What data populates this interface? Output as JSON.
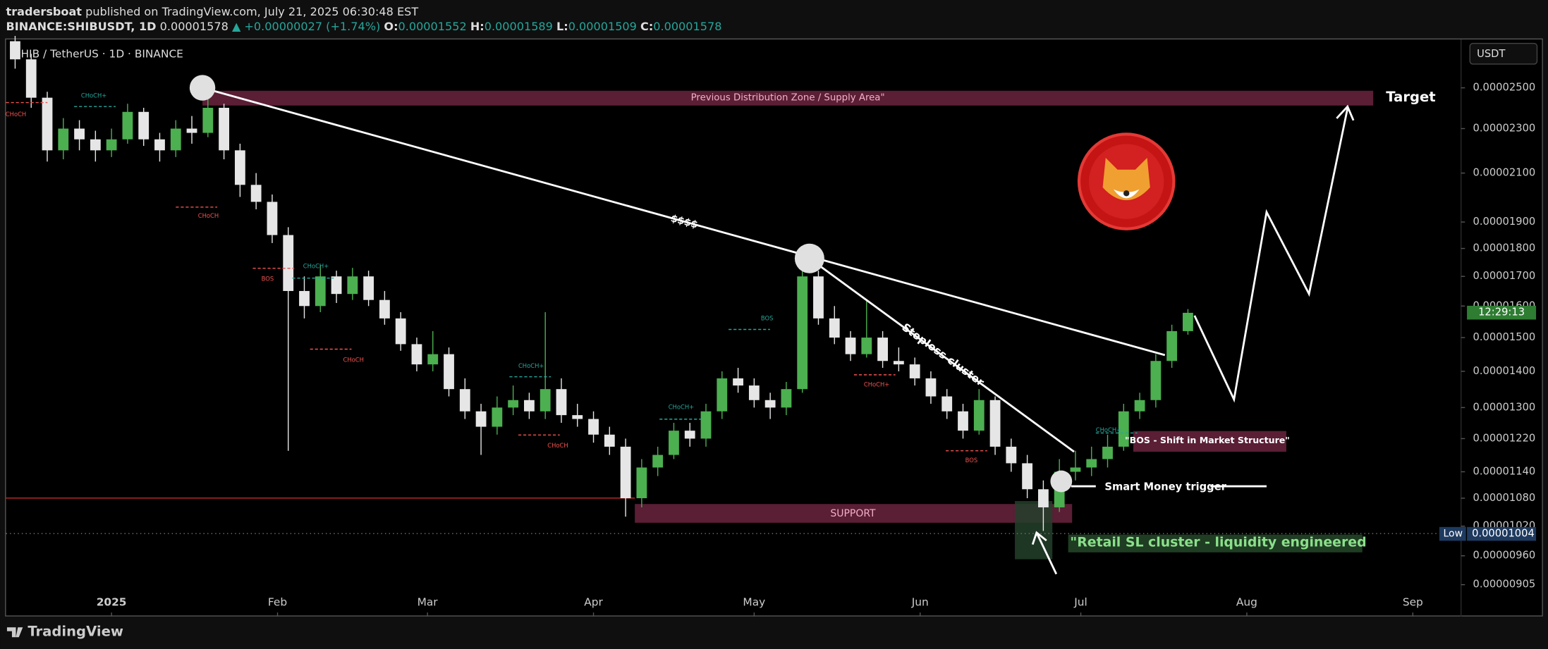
{
  "header": {
    "author": "tradersboat",
    "published": "published on TradingView.com, July 21, 2025 06:30:48 EST",
    "symbol": "BINANCE:SHIBUSDT, 1D",
    "price": "0.00001578",
    "change": "▲ +0.00000027 (+1.74%)",
    "ohlc": [
      {
        "key": "O:",
        "value": "0.00001552"
      },
      {
        "key": "H:",
        "value": "0.00001589"
      },
      {
        "key": "L:",
        "value": "0.00001509"
      },
      {
        "key": "C:",
        "value": "0.00001578"
      }
    ]
  },
  "currency_button": "USDT",
  "footer": "TradingView",
  "chart_data": {
    "type": "candlestick",
    "title": "SHIB / TetherUS · 1D · BINANCE",
    "up_color": "#4caf50",
    "down_color": "#e6e6e6",
    "log_scale": true,
    "grid": false,
    "x": [
      -18,
      -15,
      -12,
      -9,
      -6,
      -3,
      0,
      3,
      6,
      9,
      12,
      15,
      18,
      21,
      24,
      27,
      30,
      33,
      36,
      39,
      42,
      45,
      48,
      51,
      54,
      57,
      60,
      63,
      66,
      69,
      72,
      75,
      78,
      81,
      84,
      87,
      90,
      93,
      96,
      99,
      102,
      105,
      108,
      111,
      114,
      117,
      120,
      123,
      126,
      129,
      132,
      135,
      138,
      141,
      144,
      147,
      150,
      153,
      156,
      159,
      162,
      165,
      168,
      171,
      174,
      177,
      180,
      183,
      186,
      189,
      192,
      195,
      198,
      201
    ],
    "open": [
      2.75e-05,
      2.65e-05,
      2.45e-05,
      2.2e-05,
      2.3e-05,
      2.25e-05,
      2.2e-05,
      2.25e-05,
      2.38e-05,
      2.25e-05,
      2.2e-05,
      2.3e-05,
      2.28e-05,
      2.4e-05,
      2.2e-05,
      2.05e-05,
      1.98e-05,
      1.85e-05,
      1.65e-05,
      1.6e-05,
      1.7e-05,
      1.64e-05,
      1.7e-05,
      1.62e-05,
      1.56e-05,
      1.48e-05,
      1.42e-05,
      1.45e-05,
      1.35e-05,
      1.29e-05,
      1.25e-05,
      1.3e-05,
      1.32e-05,
      1.29e-05,
      1.35e-05,
      1.28e-05,
      1.27e-05,
      1.23e-05,
      1.2e-05,
      1.08e-05,
      1.15e-05,
      1.18e-05,
      1.24e-05,
      1.22e-05,
      1.29e-05,
      1.38e-05,
      1.36e-05,
      1.32e-05,
      1.3e-05,
      1.35e-05,
      1.7e-05,
      1.56e-05,
      1.5e-05,
      1.45e-05,
      1.5e-05,
      1.43e-05,
      1.42e-05,
      1.38e-05,
      1.33e-05,
      1.29e-05,
      1.24e-05,
      1.32e-05,
      1.2e-05,
      1.16e-05,
      1.1e-05,
      1.06e-05,
      1.14e-05,
      1.15e-05,
      1.17e-05,
      1.2e-05,
      1.29e-05,
      1.32e-05,
      1.43e-05,
      1.52e-05
    ],
    "high": [
      2.78e-05,
      2.68e-05,
      2.48e-05,
      2.35e-05,
      2.34e-05,
      2.29e-05,
      2.3e-05,
      2.42e-05,
      2.4e-05,
      2.28e-05,
      2.34e-05,
      2.36e-05,
      2.5e-05,
      2.42e-05,
      2.23e-05,
      2.1e-05,
      2.01e-05,
      1.88e-05,
      1.7e-05,
      1.74e-05,
      1.72e-05,
      1.73e-05,
      1.72e-05,
      1.65e-05,
      1.58e-05,
      1.5e-05,
      1.52e-05,
      1.47e-05,
      1.38e-05,
      1.31e-05,
      1.33e-05,
      1.36e-05,
      1.34e-05,
      1.58e-05,
      1.38e-05,
      1.31e-05,
      1.29e-05,
      1.25e-05,
      1.22e-05,
      1.17e-05,
      1.2e-05,
      1.26e-05,
      1.26e-05,
      1.31e-05,
      1.4e-05,
      1.41e-05,
      1.38e-05,
      1.34e-05,
      1.37e-05,
      1.76e-05,
      1.72e-05,
      1.6e-05,
      1.52e-05,
      1.62e-05,
      1.52e-05,
      1.47e-05,
      1.44e-05,
      1.4e-05,
      1.35e-05,
      1.31e-05,
      1.35e-05,
      1.33e-05,
      1.22e-05,
      1.18e-05,
      1.12e-05,
      1.17e-05,
      1.19e-05,
      1.2e-05,
      1.23e-05,
      1.31e-05,
      1.34e-05,
      1.45e-05,
      1.54e-05,
      1.59e-05
    ],
    "low": [
      2.6e-05,
      2.4e-05,
      2.15e-05,
      2.16e-05,
      2.2e-05,
      2.15e-05,
      2.17e-05,
      2.23e-05,
      2.22e-05,
      2.15e-05,
      2.17e-05,
      2.23e-05,
      2.26e-05,
      2.16e-05,
      2e-05,
      1.95e-05,
      1.82e-05,
      1.19e-05,
      1.56e-05,
      1.58e-05,
      1.61e-05,
      1.62e-05,
      1.6e-05,
      1.54e-05,
      1.46e-05,
      1.4e-05,
      1.4e-05,
      1.33e-05,
      1.27e-05,
      1.18e-05,
      1.23e-05,
      1.28e-05,
      1.27e-05,
      1.27e-05,
      1.26e-05,
      1.25e-05,
      1.21e-05,
      1.18e-05,
      1.04e-05,
      1.06e-05,
      1.13e-05,
      1.17e-05,
      1.2e-05,
      1.2e-05,
      1.27e-05,
      1.34e-05,
      1.3e-05,
      1.27e-05,
      1.28e-05,
      1.34e-05,
      1.54e-05,
      1.48e-05,
      1.43e-05,
      1.44e-05,
      1.41e-05,
      1.4e-05,
      1.36e-05,
      1.31e-05,
      1.27e-05,
      1.22e-05,
      1.23e-05,
      1.18e-05,
      1.14e-05,
      1.08e-05,
      1.01e-05,
      1.05e-05,
      1.12e-05,
      1.13e-05,
      1.15e-05,
      1.19e-05,
      1.27e-05,
      1.3e-05,
      1.41e-05,
      1.509e-05
    ],
    "close": [
      2.65e-05,
      2.45e-05,
      2.2e-05,
      2.3e-05,
      2.25e-05,
      2.2e-05,
      2.25e-05,
      2.38e-05,
      2.25e-05,
      2.2e-05,
      2.3e-05,
      2.28e-05,
      2.4e-05,
      2.2e-05,
      2.05e-05,
      1.98e-05,
      1.85e-05,
      1.65e-05,
      1.6e-05,
      1.7e-05,
      1.64e-05,
      1.7e-05,
      1.62e-05,
      1.56e-05,
      1.48e-05,
      1.42e-05,
      1.45e-05,
      1.35e-05,
      1.29e-05,
      1.25e-05,
      1.3e-05,
      1.32e-05,
      1.29e-05,
      1.35e-05,
      1.28e-05,
      1.27e-05,
      1.23e-05,
      1.2e-05,
      1.08e-05,
      1.15e-05,
      1.18e-05,
      1.24e-05,
      1.22e-05,
      1.29e-05,
      1.38e-05,
      1.36e-05,
      1.32e-05,
      1.3e-05,
      1.35e-05,
      1.7e-05,
      1.56e-05,
      1.5e-05,
      1.45e-05,
      1.5e-05,
      1.43e-05,
      1.42e-05,
      1.38e-05,
      1.33e-05,
      1.29e-05,
      1.24e-05,
      1.32e-05,
      1.2e-05,
      1.16e-05,
      1.1e-05,
      1.06e-05,
      1.14e-05,
      1.15e-05,
      1.17e-05,
      1.2e-05,
      1.29e-05,
      1.32e-05,
      1.43e-05,
      1.52e-05,
      1.578e-05
    ],
    "xlim": [
      -19.7,
      252
    ],
    "xticks": [
      {
        "value": 0,
        "label": "2025"
      },
      {
        "value": 31,
        "label": "Feb"
      },
      {
        "value": 59,
        "label": "Mar"
      },
      {
        "value": 90,
        "label": "Apr"
      },
      {
        "value": 120,
        "label": "May"
      },
      {
        "value": 151,
        "label": "Jun"
      },
      {
        "value": 181,
        "label": "Jul"
      },
      {
        "value": 212,
        "label": "Aug"
      },
      {
        "value": 243,
        "label": "Sep"
      }
    ],
    "ylim": [
      8.48e-06,
      2.76e-05
    ],
    "yticks": [
      {
        "value": 2.5e-05,
        "label": "0.00002500"
      },
      {
        "value": 2.3e-05,
        "label": "0.00002300"
      },
      {
        "value": 2.1e-05,
        "label": "0.00002100"
      },
      {
        "value": 1.9e-05,
        "label": "0.00001900"
      },
      {
        "value": 1.8e-05,
        "label": "0.00001800"
      },
      {
        "value": 1.7e-05,
        "label": "0.00001700"
      },
      {
        "value": 1.6e-05,
        "label": "0.00001600"
      },
      {
        "value": 1.5e-05,
        "label": "0.00001500"
      },
      {
        "value": 1.4e-05,
        "label": "0.00001400"
      },
      {
        "value": 1.3e-05,
        "label": "0.00001300"
      },
      {
        "value": 1.22e-05,
        "label": "0.00001220"
      },
      {
        "value": 1.14e-05,
        "label": "0.00001140"
      },
      {
        "value": 1.08e-05,
        "label": "0.00001080"
      },
      {
        "value": 1.02e-05,
        "label": "0.00001020"
      },
      {
        "value": 9.6e-06,
        "label": "0.00000960"
      },
      {
        "value": 9.05e-06,
        "label": "0.00000905"
      }
    ],
    "low_tag": "Low",
    "low_price": {
      "value": 1.004e-05,
      "label": "0.00001004"
    },
    "countdown": "12:29:13",
    "annotations": {
      "supply": "Previous Distribution Zone / Supply Area\"",
      "target": "Target",
      "dollars": "$$$$",
      "stoploss": "Stoploss cluster",
      "bos": "\"BOS - Shift in Market Structure\"",
      "trigger": "Smart Money trigger",
      "support": "SUPPORT",
      "retail": "\"Retail SL cluster - liquidity engineered"
    },
    "structure_labels": [
      "CHoCH+",
      "CHoCH",
      "CHoCH",
      "BOS",
      "CHoCH+",
      "CHoCH",
      "CHoCH+",
      "CHoCH",
      "CHoCH+",
      "BOS",
      "CHoCH+",
      "BOS",
      "CHoCH+"
    ]
  }
}
